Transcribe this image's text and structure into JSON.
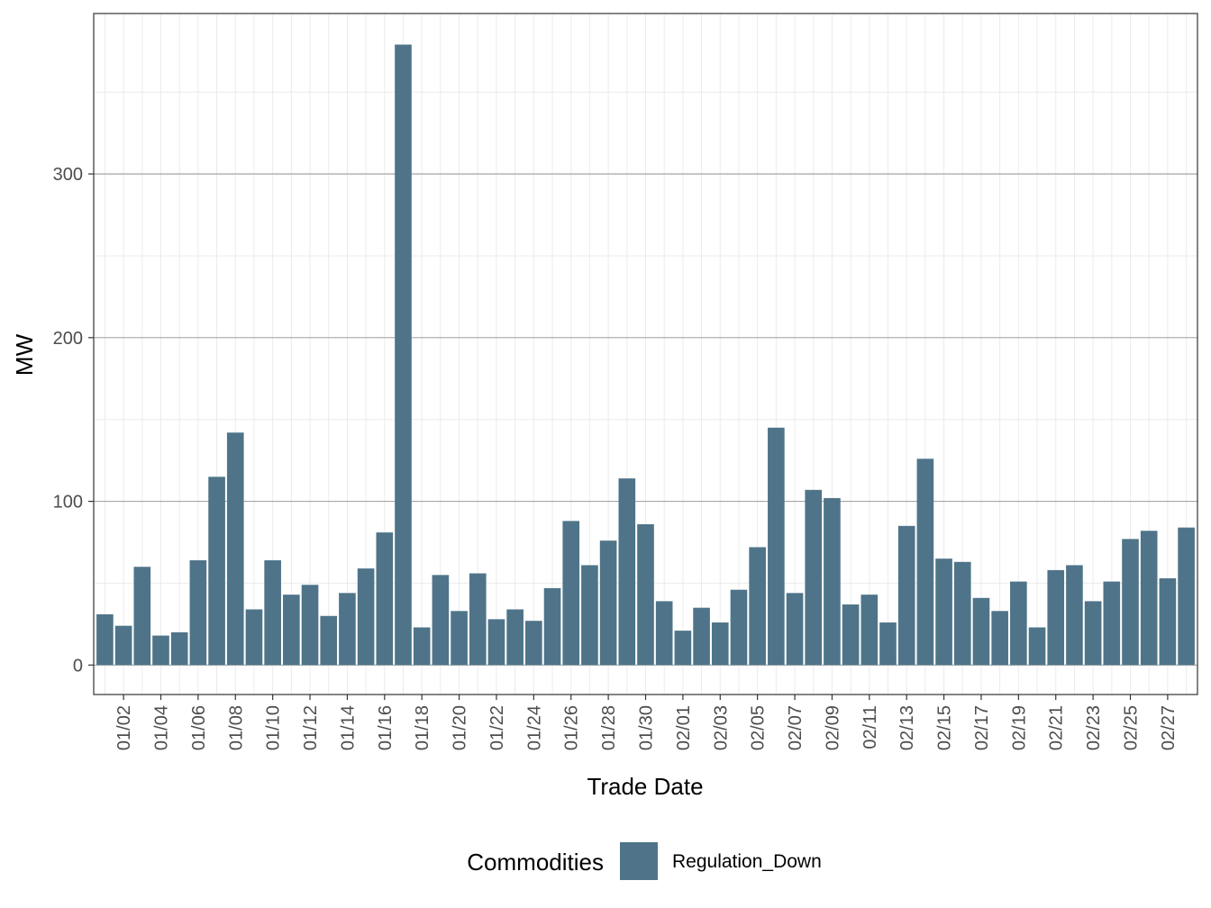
{
  "chart_data": {
    "type": "bar",
    "xlabel": "Trade Date",
    "ylabel": "MW",
    "ylim": [
      -18,
      398
    ],
    "y_ticks": [
      0,
      100,
      200,
      300
    ],
    "grid": true,
    "legend_position": "bottom",
    "legend_title": "Commodities",
    "categories": [
      "01/01",
      "01/02",
      "01/03",
      "01/04",
      "01/05",
      "01/06",
      "01/07",
      "01/08",
      "01/09",
      "01/10",
      "01/11",
      "01/12",
      "01/13",
      "01/14",
      "01/15",
      "01/16",
      "01/17",
      "01/18",
      "01/19",
      "01/20",
      "01/21",
      "01/22",
      "01/23",
      "01/24",
      "01/25",
      "01/26",
      "01/27",
      "01/28",
      "01/29",
      "01/30",
      "01/31",
      "02/01",
      "02/02",
      "02/03",
      "02/04",
      "02/05",
      "02/06",
      "02/07",
      "02/08",
      "02/09",
      "02/10",
      "02/11",
      "02/12",
      "02/13",
      "02/14",
      "02/15",
      "02/16",
      "02/17",
      "02/18",
      "02/19",
      "02/20",
      "02/21",
      "02/22",
      "02/23",
      "02/24",
      "02/25",
      "02/26",
      "02/27",
      "02/28"
    ],
    "x_tick_labels": [
      "01/02",
      "01/04",
      "01/06",
      "01/08",
      "01/10",
      "01/12",
      "01/14",
      "01/16",
      "01/18",
      "01/20",
      "01/22",
      "01/24",
      "01/26",
      "01/28",
      "01/30",
      "02/01",
      "02/03",
      "02/05",
      "02/07",
      "02/09",
      "02/11",
      "02/13",
      "02/15",
      "02/17",
      "02/19",
      "02/21",
      "02/23",
      "02/25",
      "02/27"
    ],
    "series": [
      {
        "name": "Regulation_Down",
        "color": "#4f7489",
        "values": [
          31,
          24,
          60,
          18,
          20,
          64,
          115,
          142,
          34,
          64,
          43,
          49,
          30,
          44,
          59,
          81,
          379,
          23,
          55,
          33,
          56,
          28,
          34,
          27,
          47,
          88,
          61,
          76,
          114,
          86,
          39,
          21,
          35,
          26,
          46,
          72,
          145,
          44,
          107,
          102,
          37,
          43,
          26,
          85,
          126,
          65,
          63,
          41,
          33,
          51,
          23,
          58,
          61,
          39,
          51,
          77,
          82,
          53,
          84
        ]
      }
    ]
  }
}
